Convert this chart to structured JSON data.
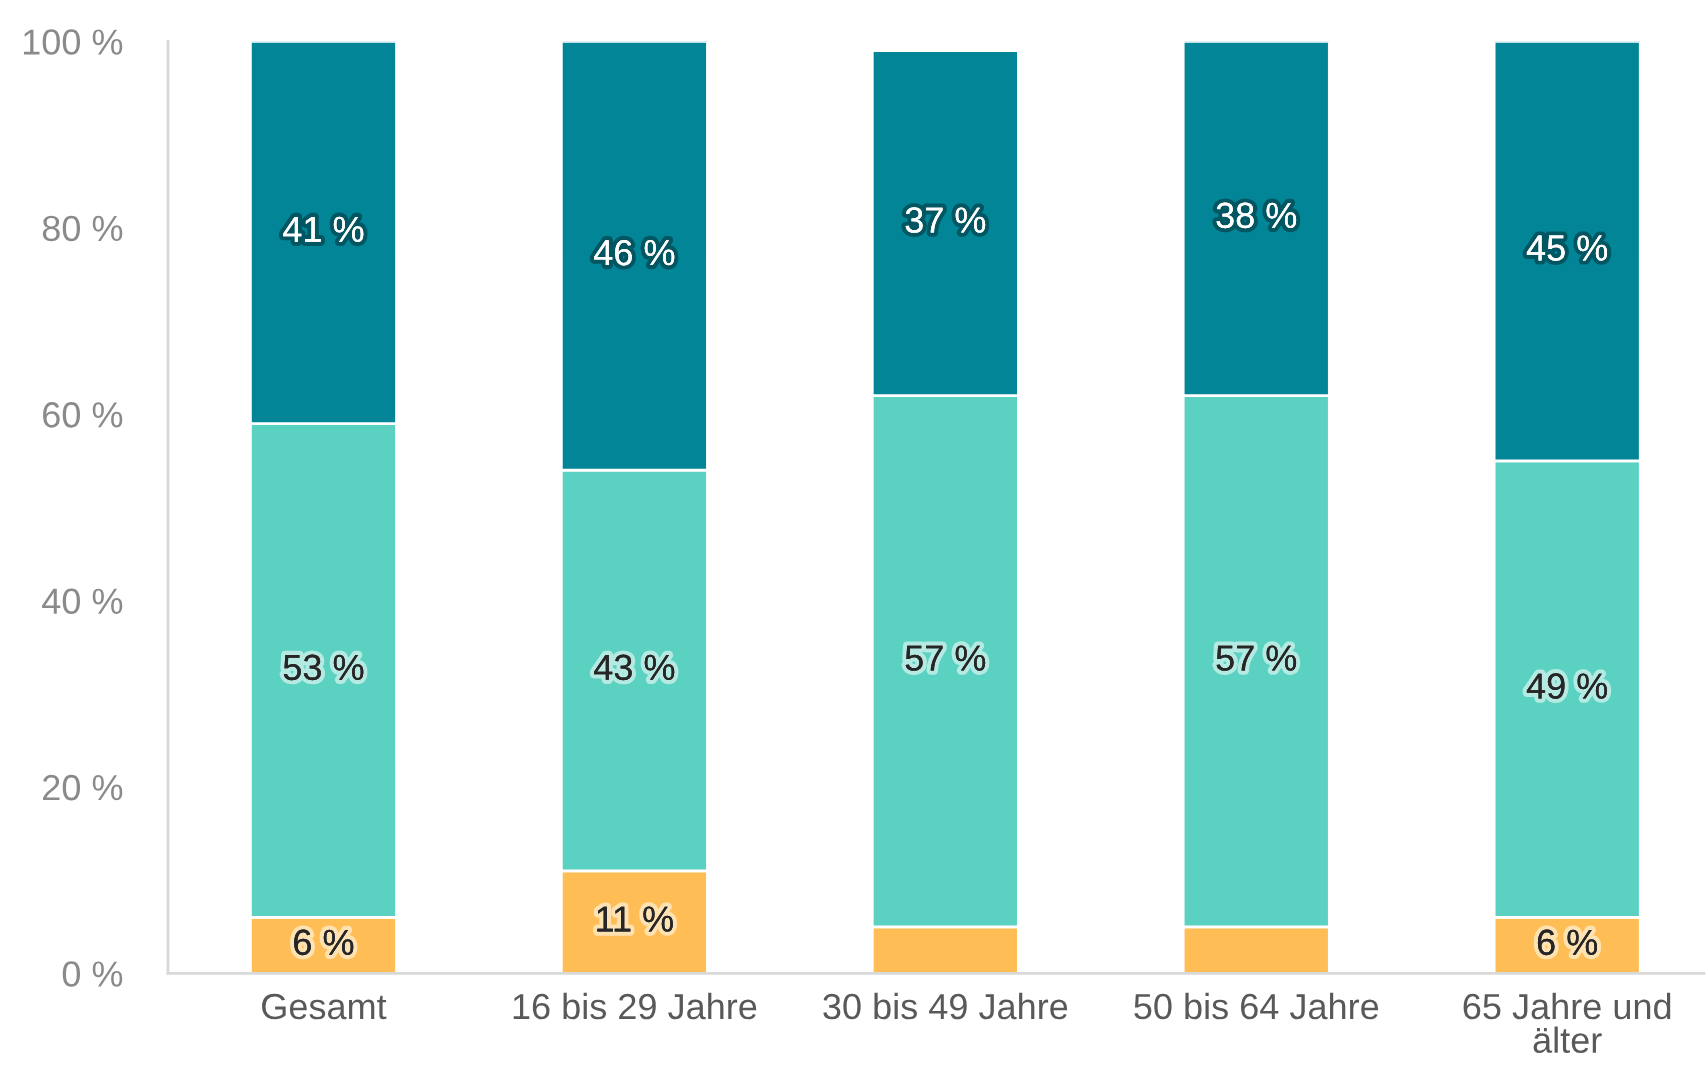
{
  "chart_data": {
    "type": "bar",
    "stacked": true,
    "categories": [
      "Gesamt",
      "16 bis 29 Jahre",
      "30 bis 49 Jahre",
      "50 bis 64 Jahre",
      "65 Jahre und älter"
    ],
    "series": [
      {
        "color": "#ffbe55",
        "values": [
          6,
          11,
          5,
          5,
          6
        ],
        "value_labels": [
          "6 %",
          "11 %",
          null,
          null,
          "6 %"
        ]
      },
      {
        "color": "#5bd1c2",
        "values": [
          53,
          43,
          57,
          57,
          49
        ],
        "value_labels": [
          "53 %",
          "43 %",
          "57 %",
          "57 %",
          "49 %"
        ]
      },
      {
        "color": "#028597",
        "values": [
          41,
          46,
          37,
          38,
          45
        ],
        "value_labels": [
          "41 %",
          "46 %",
          "37 %",
          "38 %",
          "45 %"
        ]
      }
    ],
    "ylim": [
      0,
      100
    ],
    "yticks": [
      {
        "value": 0,
        "label": "0 %"
      },
      {
        "value": 20,
        "label": "20 %"
      },
      {
        "value": 40,
        "label": "40 %"
      },
      {
        "value": 60,
        "label": "60 %"
      },
      {
        "value": 80,
        "label": "80 %"
      },
      {
        "value": 100,
        "label": "100 %"
      }
    ],
    "grid": false
  }
}
